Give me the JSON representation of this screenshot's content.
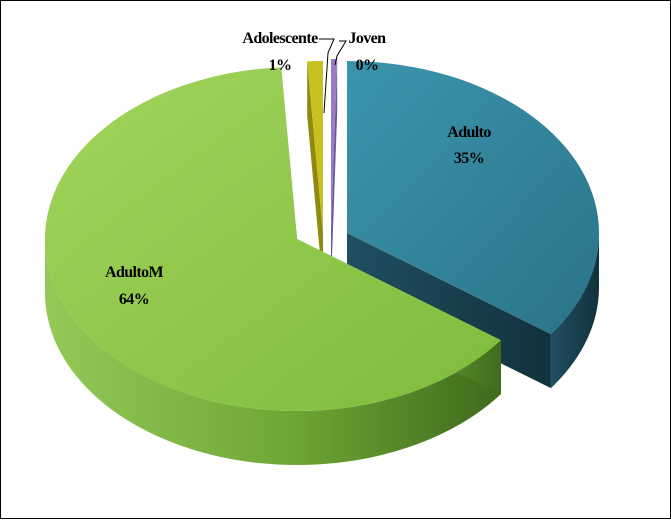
{
  "chart_data": {
    "type": "pie",
    "style": "3d-exploded",
    "title": "",
    "slices": [
      {
        "name": "Adulto",
        "value": 35,
        "label": "35%",
        "color": "#31859c"
      },
      {
        "name": "AdultoM",
        "value": 64,
        "label": "64%",
        "color": "#8fc94b"
      },
      {
        "name": "Adolescente",
        "value": 1,
        "label": "1%",
        "color": "#c8c020"
      },
      {
        "name": "Joven",
        "value": 0,
        "label": "0%",
        "color": "#9a7cc4"
      }
    ],
    "legend": "none"
  }
}
